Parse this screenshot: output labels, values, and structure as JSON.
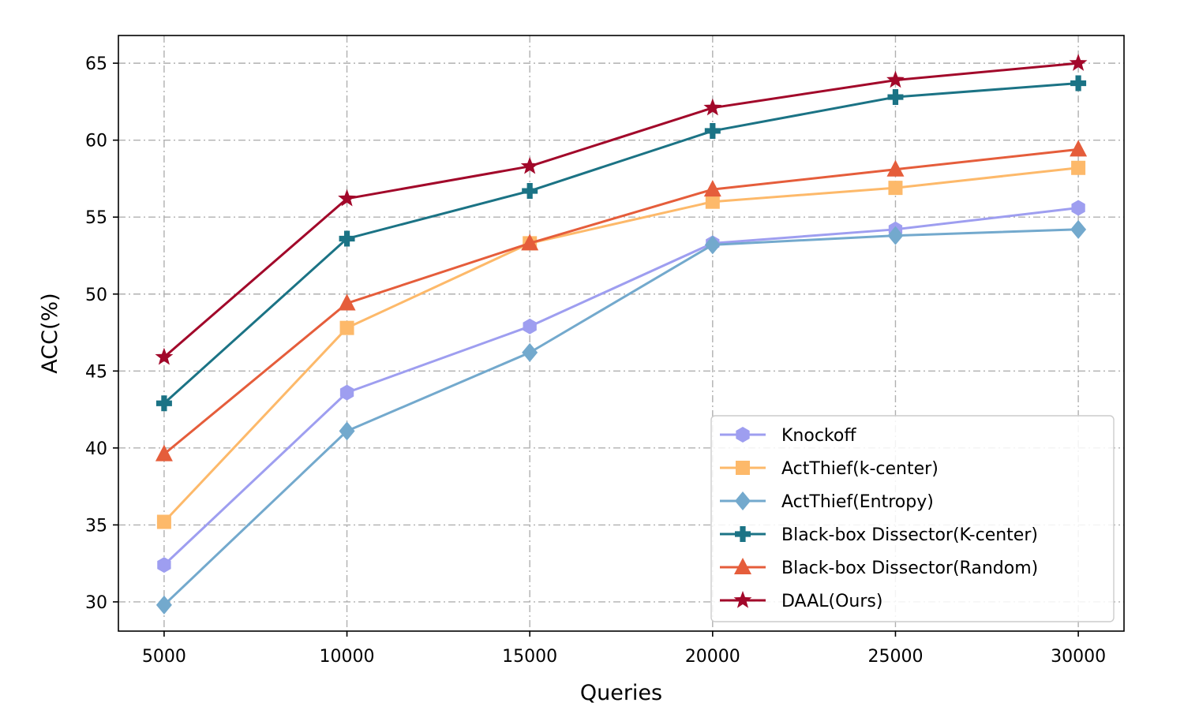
{
  "chart_data": {
    "type": "line",
    "xlabel": "Queries",
    "ylabel": "ACC(%)",
    "x": [
      5000,
      10000,
      15000,
      20000,
      25000,
      30000
    ],
    "xlim": [
      3750,
      31250
    ],
    "ylim": [
      28.1,
      66.8
    ],
    "xticks": [
      5000,
      10000,
      15000,
      20000,
      25000,
      30000
    ],
    "yticks": [
      30,
      35,
      40,
      45,
      50,
      55,
      60,
      65
    ],
    "grid": true,
    "legend_position": "lower-right",
    "series": [
      {
        "name": "Knockoff",
        "color": "#9e9ef0",
        "marker": "hexagon",
        "values": [
          32.4,
          43.6,
          47.9,
          53.3,
          54.2,
          55.6
        ]
      },
      {
        "name": "ActThief(k-center)",
        "color": "#fdb96a",
        "marker": "square",
        "values": [
          35.2,
          47.8,
          53.3,
          56.0,
          56.9,
          58.2
        ]
      },
      {
        "name": "ActThief(Entropy)",
        "color": "#73a9cd",
        "marker": "diamond",
        "values": [
          29.8,
          41.1,
          46.2,
          53.2,
          53.8,
          54.2
        ]
      },
      {
        "name": "Black-box Dissector(K-center)",
        "color": "#1b7385",
        "marker": "plus",
        "values": [
          42.9,
          53.6,
          56.7,
          60.6,
          62.8,
          63.7
        ]
      },
      {
        "name": "Black-box Dissector(Random)",
        "color": "#e55d3b",
        "marker": "triangle",
        "values": [
          39.6,
          49.4,
          53.3,
          56.8,
          58.1,
          59.4
        ]
      },
      {
        "name": "DAAL(Ours)",
        "color": "#a2082a",
        "marker": "star",
        "values": [
          45.9,
          56.2,
          58.3,
          62.1,
          63.9,
          65.0
        ]
      }
    ]
  }
}
